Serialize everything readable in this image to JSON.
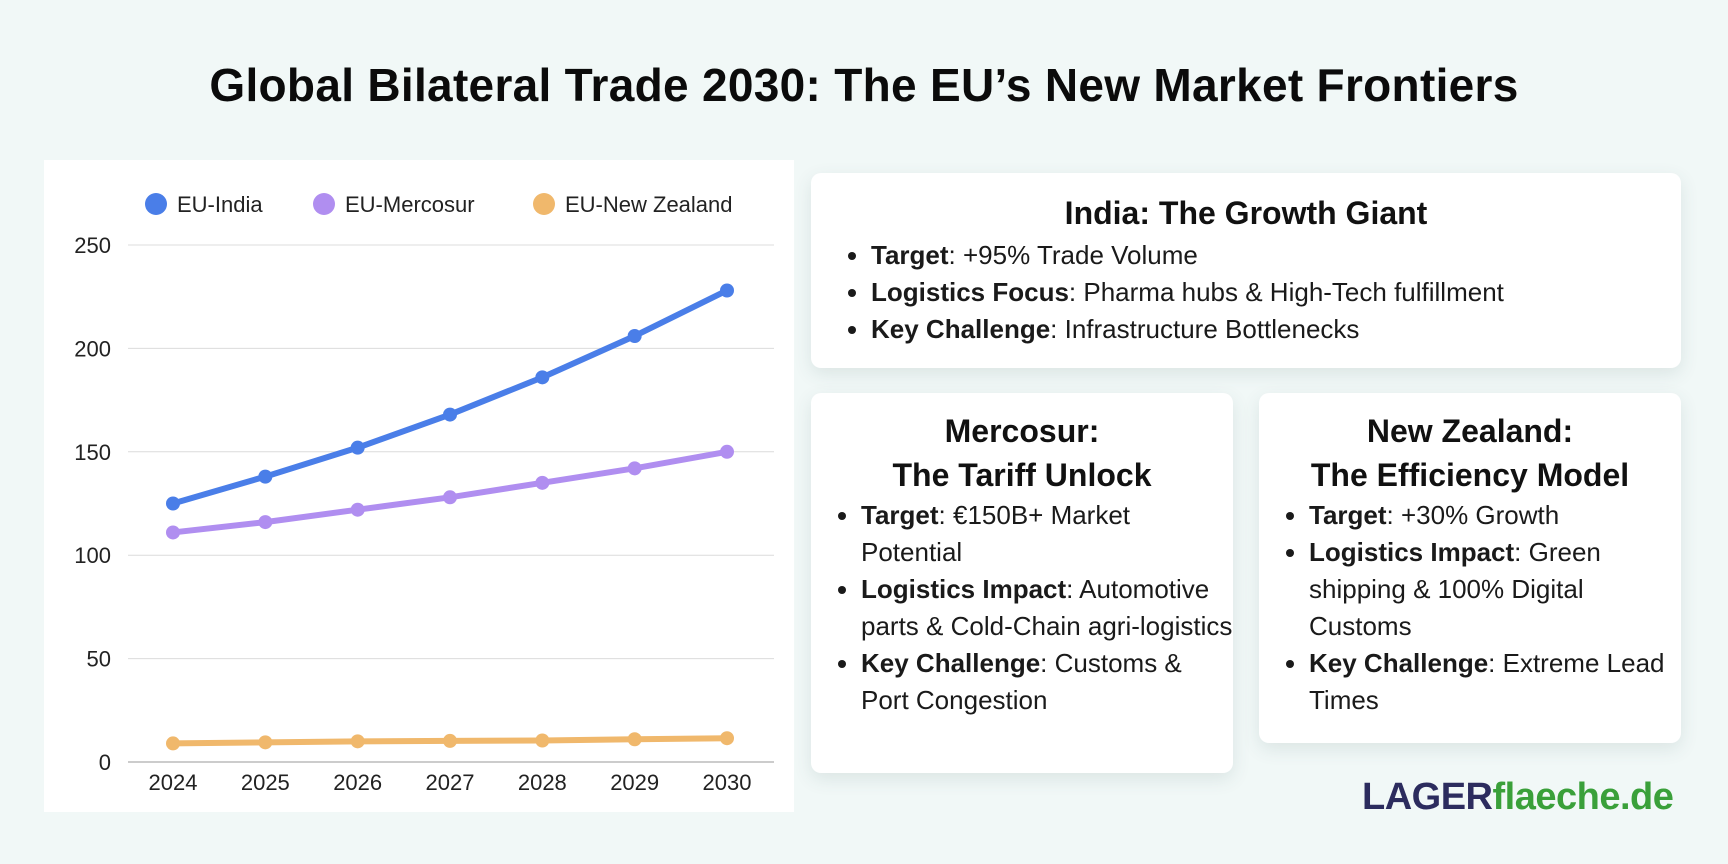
{
  "title": "Global Bilateral Trade 2030: The EU’s New Market Frontiers",
  "chart_data": {
    "type": "line",
    "title": "",
    "xlabel": "",
    "ylabel": "",
    "categories": [
      "2024",
      "2025",
      "2026",
      "2027",
      "2028",
      "2029",
      "2030"
    ],
    "ylim": [
      0,
      250
    ],
    "yticks": [
      0,
      50,
      100,
      150,
      200,
      250
    ],
    "grid": true,
    "legend_position": "top",
    "series": [
      {
        "name": "EU-India",
        "color": "#4a7ee8",
        "values": [
          125,
          138,
          152,
          168,
          186,
          206,
          228
        ]
      },
      {
        "name": "EU-Mercosur",
        "color": "#b08ef0",
        "values": [
          111,
          116,
          122,
          128,
          135,
          142,
          150
        ]
      },
      {
        "name": "EU-New Zealand",
        "color": "#f0b86c",
        "values": [
          9,
          9.5,
          10,
          10.2,
          10.4,
          11,
          11.5
        ]
      }
    ]
  },
  "cards": {
    "india": {
      "title": "India: The Growth Giant",
      "items": [
        {
          "label": "Target",
          "text": ": +95% Trade Volume"
        },
        {
          "label": "Logistics Focus",
          "text": ": Pharma hubs & High-Tech fulfillment"
        },
        {
          "label": "Key Challenge",
          "text": ": Infrastructure Bottlenecks"
        }
      ]
    },
    "mercosur": {
      "title_line1": "Mercosur:",
      "title_line2": "The Tariff Unlock",
      "items": [
        {
          "label": "Target",
          "text": ": €150B+ Market Potential"
        },
        {
          "label": "Logistics Impact",
          "text": ": Automotive parts & Cold-Chain agri-logistics"
        },
        {
          "label": "Key Challenge",
          "text": ": Customs & Port Congestion"
        }
      ]
    },
    "nz": {
      "title_line1": "New Zealand:",
      "title_line2": "The Efficiency Model",
      "items": [
        {
          "label": "Target",
          "text": ": +30% Growth"
        },
        {
          "label": "Logistics Impact",
          "text": ": Green shipping & 100% Digital Customs"
        },
        {
          "label": "Key Challenge",
          "text": ": Extreme Lead Times"
        }
      ]
    }
  },
  "logo": {
    "part1": "LAGER",
    "part2": "flaeche.de"
  }
}
